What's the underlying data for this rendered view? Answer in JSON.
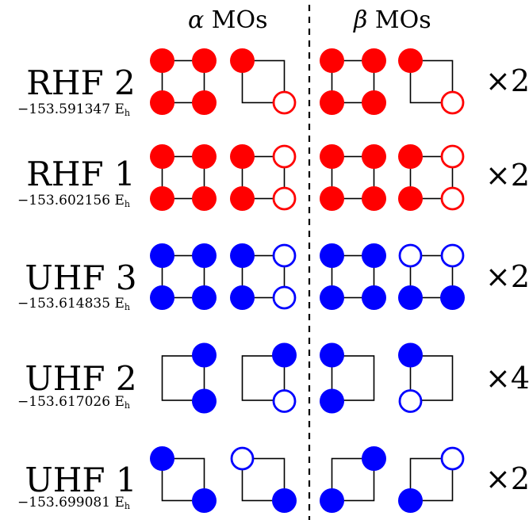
{
  "headers": {
    "alpha_symbol": "α",
    "alpha_text": " MOs",
    "beta_symbol": "β",
    "beta_text": " MOs"
  },
  "colors": {
    "rhf": "#ff0000",
    "uhf": "#0000ff",
    "frame": "#000000"
  },
  "rows": [
    {
      "name": "RHF 2",
      "energy_value": "−153.591347",
      "energy_unit": "E",
      "energy_unit_sub": "h",
      "multiplicity": "×2",
      "color": "#ff0000",
      "orbitals": [
        {
          "frame": "square",
          "dots": [
            {
              "pos": "tl",
              "fill": "solid"
            },
            {
              "pos": "tr",
              "fill": "solid"
            },
            {
              "pos": "bl",
              "fill": "solid"
            },
            {
              "pos": "br",
              "fill": "solid"
            }
          ]
        },
        {
          "frame": "square",
          "dots": [
            {
              "pos": "tl",
              "fill": "solid"
            },
            {
              "pos": "br",
              "fill": "hollow"
            }
          ]
        },
        {
          "frame": "square",
          "dots": [
            {
              "pos": "tl",
              "fill": "solid"
            },
            {
              "pos": "tr",
              "fill": "solid"
            },
            {
              "pos": "bl",
              "fill": "solid"
            },
            {
              "pos": "br",
              "fill": "solid"
            }
          ]
        },
        {
          "frame": "square",
          "dots": [
            {
              "pos": "tl",
              "fill": "solid"
            },
            {
              "pos": "br",
              "fill": "hollow"
            }
          ]
        }
      ]
    },
    {
      "name": "RHF 1",
      "energy_value": "−153.602156",
      "energy_unit": "E",
      "energy_unit_sub": "h",
      "multiplicity": "×2",
      "color": "#ff0000",
      "orbitals": [
        {
          "frame": "square",
          "dots": [
            {
              "pos": "tl",
              "fill": "solid"
            },
            {
              "pos": "tr",
              "fill": "solid"
            },
            {
              "pos": "bl",
              "fill": "solid"
            },
            {
              "pos": "br",
              "fill": "solid"
            }
          ]
        },
        {
          "frame": "square",
          "dots": [
            {
              "pos": "tl",
              "fill": "solid"
            },
            {
              "pos": "tr",
              "fill": "hollow"
            },
            {
              "pos": "bl",
              "fill": "solid"
            },
            {
              "pos": "br",
              "fill": "hollow"
            }
          ]
        },
        {
          "frame": "square",
          "dots": [
            {
              "pos": "tl",
              "fill": "solid"
            },
            {
              "pos": "tr",
              "fill": "solid"
            },
            {
              "pos": "bl",
              "fill": "solid"
            },
            {
              "pos": "br",
              "fill": "solid"
            }
          ]
        },
        {
          "frame": "square",
          "dots": [
            {
              "pos": "tl",
              "fill": "solid"
            },
            {
              "pos": "tr",
              "fill": "hollow"
            },
            {
              "pos": "bl",
              "fill": "solid"
            },
            {
              "pos": "br",
              "fill": "hollow"
            }
          ]
        }
      ]
    },
    {
      "name": "UHF 3",
      "energy_value": "−153.614835",
      "energy_unit": "E",
      "energy_unit_sub": "h",
      "multiplicity": "×2",
      "color": "#0000ff",
      "orbitals": [
        {
          "frame": "square",
          "dots": [
            {
              "pos": "tl",
              "fill": "solid"
            },
            {
              "pos": "tr",
              "fill": "solid"
            },
            {
              "pos": "bl",
              "fill": "solid"
            },
            {
              "pos": "br",
              "fill": "solid"
            }
          ]
        },
        {
          "frame": "square",
          "dots": [
            {
              "pos": "tl",
              "fill": "solid"
            },
            {
              "pos": "tr",
              "fill": "hollow"
            },
            {
              "pos": "bl",
              "fill": "solid"
            },
            {
              "pos": "br",
              "fill": "hollow"
            }
          ]
        },
        {
          "frame": "square",
          "dots": [
            {
              "pos": "tl",
              "fill": "solid"
            },
            {
              "pos": "tr",
              "fill": "solid"
            },
            {
              "pos": "bl",
              "fill": "solid"
            },
            {
              "pos": "br",
              "fill": "solid"
            }
          ]
        },
        {
          "frame": "square",
          "dots": [
            {
              "pos": "tl",
              "fill": "hollow"
            },
            {
              "pos": "tr",
              "fill": "hollow"
            },
            {
              "pos": "bl",
              "fill": "solid"
            },
            {
              "pos": "br",
              "fill": "solid"
            }
          ]
        }
      ]
    },
    {
      "name": "UHF 2",
      "energy_value": "−153.617026",
      "energy_unit": "E",
      "energy_unit_sub": "h",
      "multiplicity": "×4",
      "color": "#0000ff",
      "orbitals": [
        {
          "frame": "rect",
          "dots": [
            {
              "pos": "tr",
              "fill": "solid"
            },
            {
              "pos": "br",
              "fill": "solid"
            }
          ]
        },
        {
          "frame": "rect",
          "dots": [
            {
              "pos": "tr",
              "fill": "solid"
            },
            {
              "pos": "br",
              "fill": "hollow"
            }
          ]
        },
        {
          "frame": "rect",
          "dots": [
            {
              "pos": "tl",
              "fill": "solid"
            },
            {
              "pos": "bl",
              "fill": "solid"
            }
          ]
        },
        {
          "frame": "rect",
          "dots": [
            {
              "pos": "tl",
              "fill": "solid"
            },
            {
              "pos": "bl",
              "fill": "hollow"
            }
          ]
        }
      ]
    },
    {
      "name": "UHF 1",
      "energy_value": "−153.699081",
      "energy_unit": "E",
      "energy_unit_sub": "h",
      "multiplicity": "×2",
      "color": "#0000ff",
      "orbitals": [
        {
          "frame": "square",
          "dots": [
            {
              "pos": "tl",
              "fill": "solid"
            },
            {
              "pos": "br",
              "fill": "solid"
            }
          ]
        },
        {
          "frame": "square",
          "dots": [
            {
              "pos": "tl",
              "fill": "hollow"
            },
            {
              "pos": "br",
              "fill": "solid"
            }
          ]
        },
        {
          "frame": "square",
          "dots": [
            {
              "pos": "tr",
              "fill": "solid"
            },
            {
              "pos": "bl",
              "fill": "solid"
            }
          ]
        },
        {
          "frame": "square",
          "dots": [
            {
              "pos": "tr",
              "fill": "hollow"
            },
            {
              "pos": "bl",
              "fill": "solid"
            }
          ]
        }
      ]
    }
  ]
}
